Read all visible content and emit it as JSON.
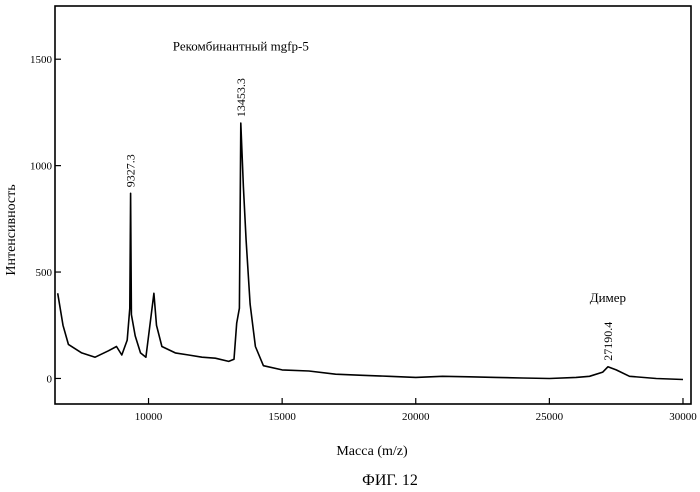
{
  "figure_caption": "ФИГ. 12",
  "chart_data": {
    "type": "line",
    "title": "",
    "xlabel": "Масса (m/z)",
    "ylabel": "Интенсивность",
    "xlim": [
      6500,
      30300
    ],
    "ylim": [
      -120,
      1750
    ],
    "xticks": [
      10000,
      15000,
      20000,
      25000,
      30000
    ],
    "yticks": [
      0,
      500,
      1000,
      1500
    ],
    "grid": false,
    "series": [
      {
        "values": [
          [
            6600,
            400
          ],
          [
            6800,
            250
          ],
          [
            7000,
            160
          ],
          [
            7500,
            120
          ],
          [
            8000,
            100
          ],
          [
            8500,
            130
          ],
          [
            8800,
            150
          ],
          [
            9000,
            110
          ],
          [
            9200,
            180
          ],
          [
            9300,
            330
          ],
          [
            9327.3,
            870
          ],
          [
            9360,
            300
          ],
          [
            9500,
            200
          ],
          [
            9700,
            120
          ],
          [
            9900,
            100
          ],
          [
            10050,
            250
          ],
          [
            10200,
            400
          ],
          [
            10300,
            250
          ],
          [
            10500,
            150
          ],
          [
            11000,
            120
          ],
          [
            11500,
            110
          ],
          [
            12000,
            100
          ],
          [
            12500,
            95
          ],
          [
            13000,
            80
          ],
          [
            13200,
            90
          ],
          [
            13300,
            260
          ],
          [
            13400,
            330
          ],
          [
            13453.3,
            1200
          ],
          [
            13550,
            900
          ],
          [
            13650,
            650
          ],
          [
            13800,
            350
          ],
          [
            14000,
            150
          ],
          [
            14300,
            60
          ],
          [
            15000,
            40
          ],
          [
            16000,
            35
          ],
          [
            17000,
            20
          ],
          [
            18000,
            15
          ],
          [
            19000,
            10
          ],
          [
            20000,
            5
          ],
          [
            21000,
            10
          ],
          [
            22000,
            8
          ],
          [
            23000,
            5
          ],
          [
            24000,
            2
          ],
          [
            25000,
            0
          ],
          [
            26000,
            5
          ],
          [
            26500,
            10
          ],
          [
            27000,
            30
          ],
          [
            27190.4,
            55
          ],
          [
            27500,
            40
          ],
          [
            28000,
            10
          ],
          [
            29000,
            0
          ],
          [
            30000,
            -5
          ]
        ]
      }
    ],
    "annotations": [
      {
        "text": "9327.3",
        "x": 9327.3,
        "y": 870
      },
      {
        "text": "13453.3",
        "x": 13453.3,
        "y": 1200
      },
      {
        "text": "27190.4",
        "x": 27190.4,
        "y": 55
      },
      {
        "text": "Рекомбинантный mgfp-5",
        "x": 13453.3,
        "y": 1540
      },
      {
        "text": "Димер",
        "x": 27190.4,
        "y": 360
      }
    ]
  }
}
